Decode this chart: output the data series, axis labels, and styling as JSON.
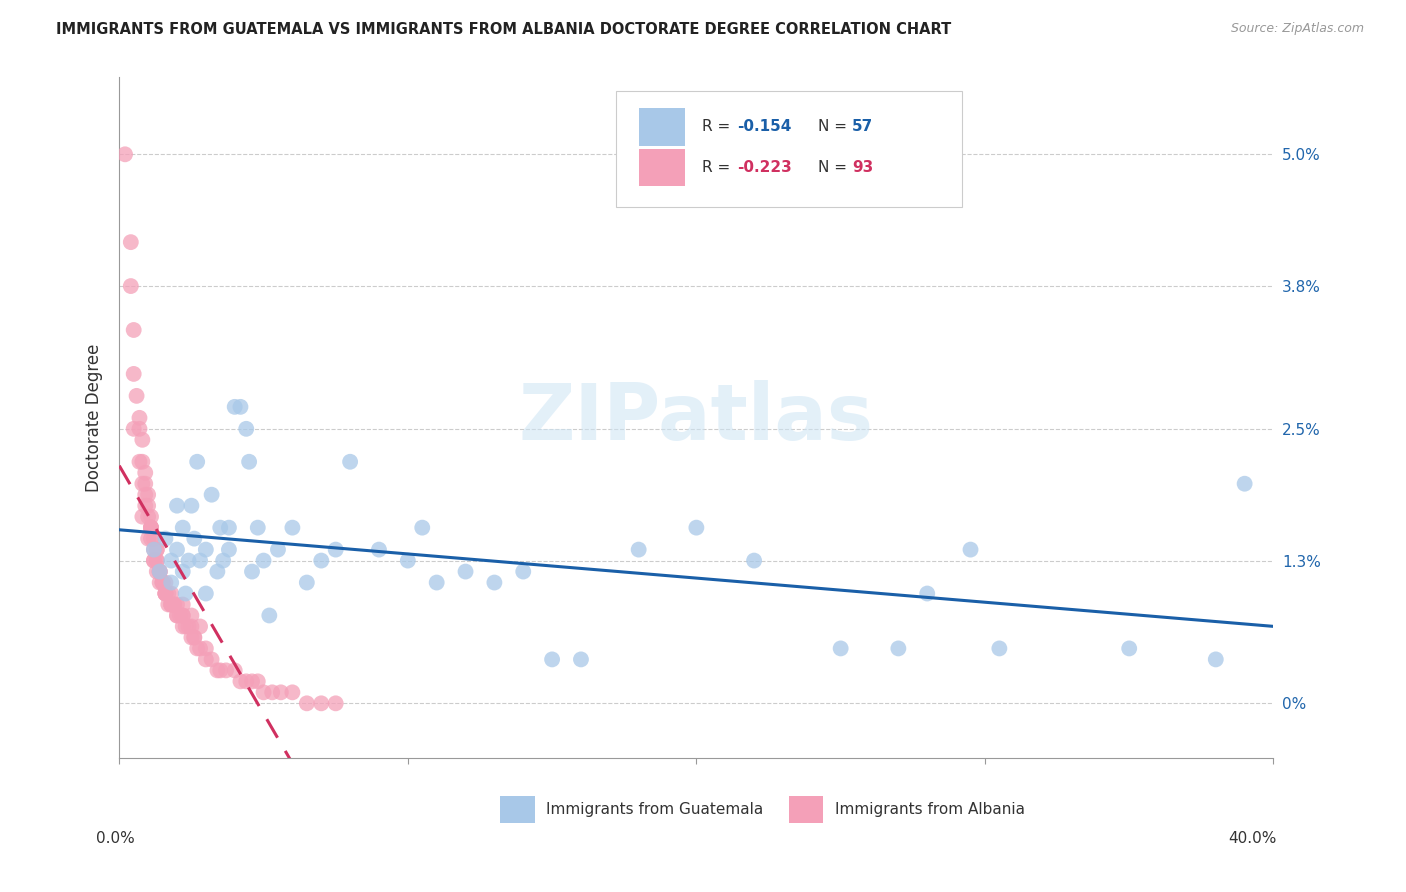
{
  "title": "IMMIGRANTS FROM GUATEMALA VS IMMIGRANTS FROM ALBANIA DOCTORATE DEGREE CORRELATION CHART",
  "source": "Source: ZipAtlas.com",
  "ylabel": "Doctorate Degree",
  "xlim": [
    0.0,
    0.4
  ],
  "ylim": [
    -0.005,
    0.057
  ],
  "ytick_positions": [
    0.0,
    0.013,
    0.025,
    0.038,
    0.05
  ],
  "ytick_labels": [
    "0%",
    "1.3%",
    "2.5%",
    "3.8%",
    "5.0%"
  ],
  "xtick_positions": [
    0.0,
    0.1,
    0.2,
    0.3,
    0.4
  ],
  "legend_r1": "-0.154",
  "legend_n1": "57",
  "legend_r2": "-0.223",
  "legend_n2": "93",
  "color_guatemala": "#a8c8e8",
  "color_albania": "#f4a0b8",
  "line_color_guatemala": "#1a5fa8",
  "line_color_albania": "#d03060",
  "grid_color": "#cccccc",
  "guatemala_x": [
    0.012,
    0.014,
    0.016,
    0.018,
    0.018,
    0.02,
    0.02,
    0.022,
    0.022,
    0.023,
    0.024,
    0.025,
    0.026,
    0.027,
    0.028,
    0.03,
    0.03,
    0.032,
    0.034,
    0.035,
    0.036,
    0.038,
    0.038,
    0.04,
    0.042,
    0.044,
    0.045,
    0.046,
    0.048,
    0.05,
    0.052,
    0.055,
    0.06,
    0.065,
    0.07,
    0.075,
    0.08,
    0.09,
    0.1,
    0.105,
    0.11,
    0.12,
    0.13,
    0.14,
    0.15,
    0.16,
    0.18,
    0.2,
    0.22,
    0.25,
    0.27,
    0.28,
    0.295,
    0.305,
    0.35,
    0.38,
    0.39
  ],
  "guatemala_y": [
    0.014,
    0.012,
    0.015,
    0.013,
    0.011,
    0.014,
    0.018,
    0.012,
    0.016,
    0.01,
    0.013,
    0.018,
    0.015,
    0.022,
    0.013,
    0.01,
    0.014,
    0.019,
    0.012,
    0.016,
    0.013,
    0.014,
    0.016,
    0.027,
    0.027,
    0.025,
    0.022,
    0.012,
    0.016,
    0.013,
    0.008,
    0.014,
    0.016,
    0.011,
    0.013,
    0.014,
    0.022,
    0.014,
    0.013,
    0.016,
    0.011,
    0.012,
    0.011,
    0.012,
    0.004,
    0.004,
    0.014,
    0.016,
    0.013,
    0.005,
    0.005,
    0.01,
    0.014,
    0.005,
    0.005,
    0.004,
    0.02
  ],
  "albania_x": [
    0.002,
    0.004,
    0.004,
    0.005,
    0.005,
    0.006,
    0.007,
    0.007,
    0.008,
    0.008,
    0.009,
    0.009,
    0.009,
    0.01,
    0.01,
    0.01,
    0.011,
    0.011,
    0.011,
    0.011,
    0.012,
    0.012,
    0.012,
    0.013,
    0.013,
    0.013,
    0.014,
    0.014,
    0.014,
    0.015,
    0.015,
    0.015,
    0.016,
    0.016,
    0.016,
    0.016,
    0.017,
    0.017,
    0.018,
    0.018,
    0.018,
    0.019,
    0.019,
    0.02,
    0.02,
    0.021,
    0.022,
    0.022,
    0.022,
    0.023,
    0.024,
    0.025,
    0.025,
    0.026,
    0.026,
    0.027,
    0.028,
    0.03,
    0.03,
    0.032,
    0.034,
    0.035,
    0.037,
    0.04,
    0.042,
    0.044,
    0.046,
    0.048,
    0.05,
    0.053,
    0.056,
    0.06,
    0.065,
    0.07,
    0.075,
    0.008,
    0.01,
    0.012,
    0.008,
    0.013,
    0.011,
    0.014,
    0.016,
    0.018,
    0.02,
    0.022,
    0.025,
    0.028,
    0.005,
    0.007,
    0.009,
    0.011,
    0.013
  ],
  "albania_y": [
    0.05,
    0.042,
    0.038,
    0.034,
    0.03,
    0.028,
    0.026,
    0.025,
    0.024,
    0.022,
    0.021,
    0.02,
    0.019,
    0.019,
    0.018,
    0.017,
    0.017,
    0.016,
    0.016,
    0.015,
    0.015,
    0.014,
    0.013,
    0.013,
    0.013,
    0.012,
    0.012,
    0.012,
    0.011,
    0.011,
    0.011,
    0.011,
    0.01,
    0.01,
    0.01,
    0.01,
    0.01,
    0.009,
    0.009,
    0.009,
    0.009,
    0.009,
    0.009,
    0.008,
    0.008,
    0.008,
    0.008,
    0.008,
    0.007,
    0.007,
    0.007,
    0.007,
    0.006,
    0.006,
    0.006,
    0.005,
    0.005,
    0.005,
    0.004,
    0.004,
    0.003,
    0.003,
    0.003,
    0.003,
    0.002,
    0.002,
    0.002,
    0.002,
    0.001,
    0.001,
    0.001,
    0.001,
    0.0,
    0.0,
    0.0,
    0.02,
    0.015,
    0.013,
    0.017,
    0.014,
    0.016,
    0.012,
    0.011,
    0.01,
    0.009,
    0.009,
    0.008,
    0.007,
    0.025,
    0.022,
    0.018,
    0.016,
    0.014
  ]
}
